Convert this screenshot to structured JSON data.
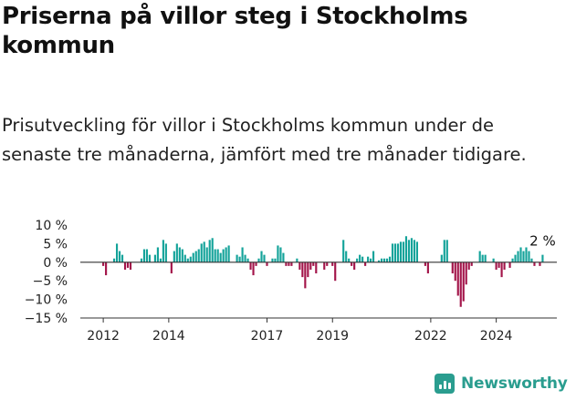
{
  "title": "Priserna på villor steg i Stockholms kommun",
  "subtitle": "Prisutveckling för villor i Stockholms kommun under de senaste tre månaderna, jämfört med tre månader tidigare.",
  "brand": {
    "name": "Newsworthy",
    "icon": "bar-chart-icon",
    "color": "#2a9d8f"
  },
  "colors": {
    "positive": "#14a39a",
    "negative": "#a3154a",
    "axis": "#333333",
    "grid": "#d7d7d7"
  },
  "chart_data": {
    "type": "bar",
    "title": "",
    "xlabel": "",
    "ylabel": "",
    "unit": "%",
    "ylim": [
      -15,
      10
    ],
    "xlim": [
      2011.3,
      2025.85
    ],
    "y_ticks": [
      {
        "value": 10,
        "label": "10 %"
      },
      {
        "value": 5,
        "label": "5 %"
      },
      {
        "value": 0,
        "label": "0 %"
      },
      {
        "value": -5,
        "label": "−5 %"
      },
      {
        "value": -10,
        "label": "−10 %"
      },
      {
        "value": -15,
        "label": "−15 %"
      }
    ],
    "x_ticks": [
      {
        "value": 2012,
        "label": "2012"
      },
      {
        "value": 2014,
        "label": "2014"
      },
      {
        "value": 2017,
        "label": "2017"
      },
      {
        "value": 2019,
        "label": "2019"
      },
      {
        "value": 2022,
        "label": "2022"
      },
      {
        "value": 2024,
        "label": "2024"
      }
    ],
    "latest_annotation": "2 %",
    "grid": false,
    "legend": "none",
    "series": [
      {
        "start": 2012.0,
        "step": 0.08333,
        "values": [
          -1,
          -3.5,
          0,
          0,
          1,
          5,
          3,
          2,
          -2,
          -1.5,
          -2,
          0,
          0,
          0,
          1,
          3.5,
          3.5,
          2,
          0,
          2,
          4,
          1,
          6,
          5,
          0,
          -3,
          3,
          5,
          4,
          3.5,
          2,
          1,
          1.5,
          2.5,
          3,
          3.5,
          5,
          5.5,
          4,
          6,
          6.5,
          3.5,
          3.5,
          2.5,
          3.5,
          4,
          4.5,
          0,
          0,
          2,
          1.5,
          4,
          2,
          1,
          -2,
          -3.5,
          -1,
          1,
          3,
          2,
          -1,
          0,
          1,
          1,
          4.5,
          4,
          2.5,
          -1,
          -1,
          -1,
          0,
          1,
          -2,
          -4,
          -7,
          -4,
          -2,
          -1,
          -3,
          0,
          0,
          -2,
          -1,
          0,
          -1,
          -5,
          0,
          0,
          6,
          3,
          1,
          -1,
          -2,
          1,
          2,
          1.5,
          -1,
          1.5,
          1,
          3,
          0,
          0.5,
          1,
          1,
          1,
          1.5,
          5,
          5,
          5,
          5.5,
          5.5,
          7,
          6,
          6.5,
          6,
          5.5,
          0,
          0,
          -1,
          -3,
          0,
          0,
          0,
          0,
          2,
          6,
          6,
          0,
          -3,
          -5,
          -9,
          -12,
          -10.5,
          -6,
          -2,
          -1,
          0,
          0,
          3,
          2,
          2,
          0,
          0,
          1,
          -2,
          -1.5,
          -4,
          -2,
          0,
          -1.5,
          1,
          2,
          3,
          4,
          3,
          4,
          3,
          1,
          -1,
          0,
          -1,
          2
        ]
      }
    ]
  }
}
